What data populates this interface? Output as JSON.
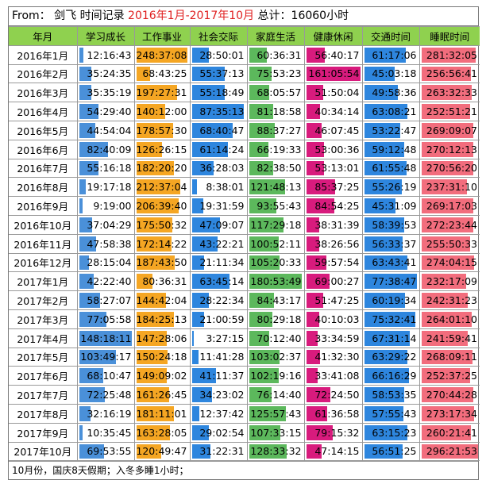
{
  "title": {
    "prefix": "From： 剑飞  时间记录",
    "range": "2016年1月-2017年10月",
    "total": "总计：16060小时"
  },
  "columns": [
    {
      "label": "年月"
    },
    {
      "label": "学习成长",
      "color": "#4a90d9",
      "max_hours": 150
    },
    {
      "label": "工作事业",
      "color": "#f5a623",
      "max_hours": 250
    },
    {
      "label": "社会交际",
      "color": "#2e86de",
      "max_hours": 90
    },
    {
      "label": "家庭生活",
      "color": "#5cb85c",
      "max_hours": 181
    },
    {
      "label": "健康休闲",
      "color": "#d81b7d",
      "max_hours": 161
    },
    {
      "label": "交通时间",
      "color": "#2e86de",
      "max_hours": 78
    },
    {
      "label": "睡眠时间",
      "color": "#f26d7d",
      "max_hours": 296
    }
  ],
  "rows": [
    {
      "month": "2016年1月",
      "values": [
        "12:16:43",
        "248:37:08",
        "28:50:01",
        "60:36:31",
        "56:40:17",
        "61:17:06",
        "281:32:05"
      ]
    },
    {
      "month": "2016年2月",
      "values": [
        "35:24:35",
        "68:43:25",
        "55:37:13",
        "75:53:23",
        "161:05:54",
        "45:03:18",
        "256:56:41"
      ]
    },
    {
      "month": "2016年3月",
      "values": [
        "35:35:19",
        "197:27:31",
        "55:18:49",
        "68:05:57",
        "51:50:04",
        "49:58:36",
        "263:32:33"
      ]
    },
    {
      "month": "2016年4月",
      "values": [
        "54:29:40",
        "140:12:00",
        "87:35:13",
        "81:18:58",
        "40:34:14",
        "63:08:21",
        "252:51:21"
      ]
    },
    {
      "month": "2016年5月",
      "values": [
        "44:54:04",
        "178:57:30",
        "68:40:47",
        "88:37:27",
        "46:07:45",
        "53:22:47",
        "269:09:07"
      ]
    },
    {
      "month": "2016年6月",
      "values": [
        "82:40:09",
        "126:26:15",
        "61:14:24",
        "66:19:33",
        "53:00:36",
        "59:12:48",
        "270:12:13"
      ]
    },
    {
      "month": "2016年7月",
      "values": [
        "55:16:18",
        "182:20:20",
        "36:28:03",
        "82:38:50",
        "53:13:01",
        "61:55:48",
        "270:56:20"
      ]
    },
    {
      "month": "2016年8月",
      "values": [
        "19:17:18",
        "212:37:04",
        "8:38:01",
        "121:48:13",
        "85:37:25",
        "55:26:19",
        "237:31:10"
      ]
    },
    {
      "month": "2016年9月",
      "values": [
        "9:19:00",
        "206:39:40",
        "19:31:59",
        "93:55:43",
        "84:54:25",
        "45:31:09",
        "269:17:03"
      ]
    },
    {
      "month": "2016年10月",
      "values": [
        "37:04:29",
        "175:50:32",
        "47:09:07",
        "117:29:18",
        "38:31:39",
        "58:39:53",
        "272:23:44"
      ]
    },
    {
      "month": "2016年11月",
      "values": [
        "47:58:38",
        "172:14:22",
        "43:22:21",
        "100:52:11",
        "38:26:56",
        "56:33:37",
        "255:50:33"
      ]
    },
    {
      "month": "2016年12月",
      "values": [
        "28:15:04",
        "187:43:50",
        "21:11:34",
        "105:20:33",
        "59:57:54",
        "63:43:41",
        "274:04:15"
      ]
    },
    {
      "month": "2017年1月",
      "values": [
        "42:22:40",
        "80:36:31",
        "63:45:14",
        "180:53:49",
        "69:00:27",
        "77:38:47",
        "232:17:09"
      ]
    },
    {
      "month": "2017年2月",
      "values": [
        "58:27:07",
        "144:42:04",
        "28:22:34",
        "84:43:17",
        "51:47:25",
        "60:19:34",
        "242:31:23"
      ]
    },
    {
      "month": "2017年3月",
      "values": [
        "77:05:58",
        "184:25:13",
        "21:00:59",
        "80:29:18",
        "40:10:03",
        "75:32:41",
        "264:01:10"
      ]
    },
    {
      "month": "2017年4月",
      "values": [
        "148:18:11",
        "147:28:06",
        "3:27:15",
        "70:12:40",
        "33:34:59",
        "67:31:14",
        "241:59:41"
      ]
    },
    {
      "month": "2017年5月",
      "values": [
        "103:49:17",
        "150:24:18",
        "11:41:28",
        "103:02:37",
        "41:32:30",
        "63:29:22",
        "268:09:11"
      ]
    },
    {
      "month": "2017年6月",
      "values": [
        "68:10:47",
        "149:09:02",
        "41:11:37",
        "102:19:16",
        "33:41:08",
        "66:16:29",
        "252:37:25"
      ]
    },
    {
      "month": "2017年7月",
      "values": [
        "72:25:48",
        "161:26:45",
        "34:23:02",
        "76:14:40",
        "72:24:50",
        "58:53:35",
        "270:44:28"
      ]
    },
    {
      "month": "2017年8月",
      "values": [
        "32:16:19",
        "181:11:01",
        "12:37:42",
        "125:57:43",
        "61:36:58",
        "57:55:43",
        "273:17:34"
      ]
    },
    {
      "month": "2017年9月",
      "values": [
        "10:35:45",
        "163:28:05",
        "29:02:54",
        "107:33:15",
        "79:15:32",
        "63:15:23",
        "260:21:41"
      ]
    },
    {
      "month": "2017年10月",
      "values": [
        "69:53:55",
        "120:49:47",
        "31:22:31",
        "128:33:32",
        "47:14:15",
        "56:51:25",
        "296:21:53"
      ]
    }
  ],
  "note": "10月份，国庆8天假期；入冬多睡1小时；"
}
